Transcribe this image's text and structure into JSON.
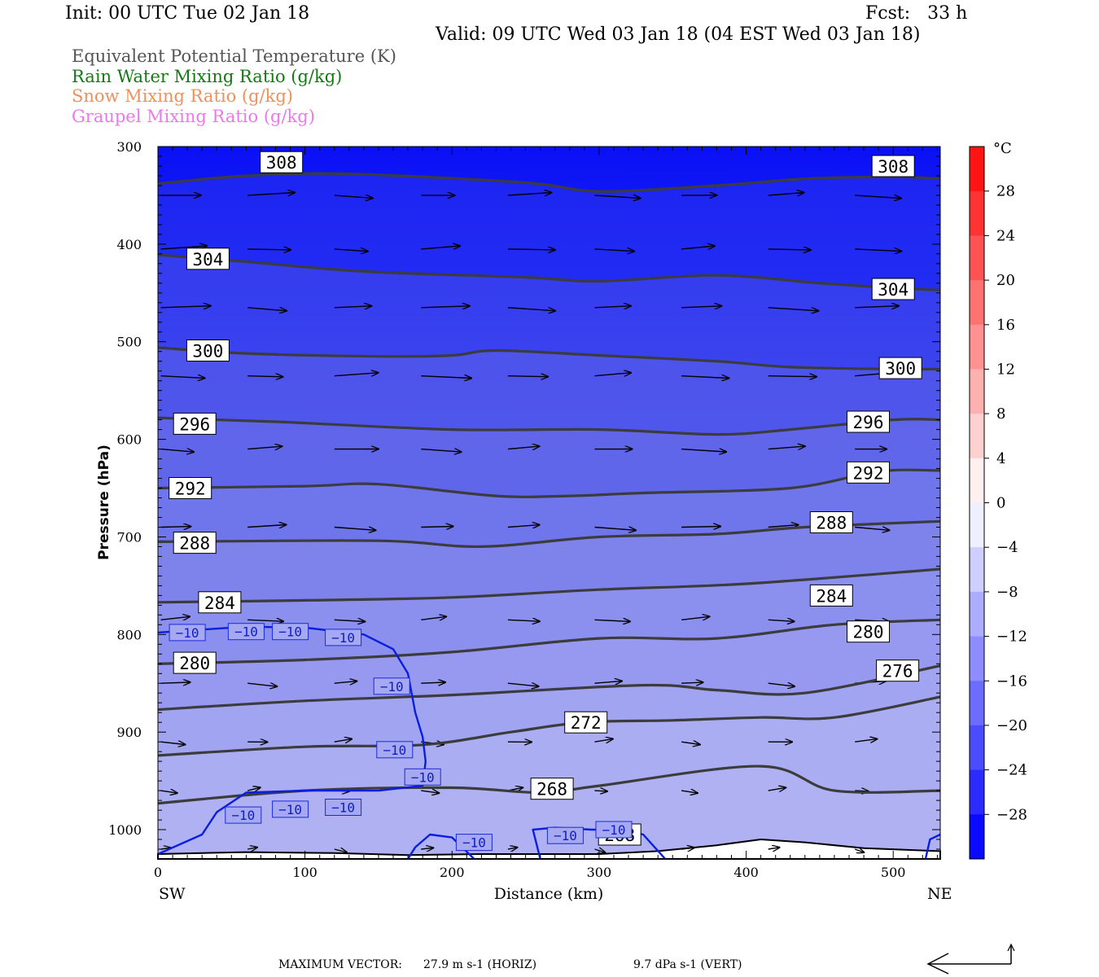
{
  "header": {
    "init": "Init: 00 UTC Tue 02 Jan 18",
    "fcst": "Fcst:   33 h",
    "valid": "Valid: 09 UTC Wed 03 Jan 18 (04 EST Wed 03 Jan 18)"
  },
  "legend": [
    {
      "label": "Equivalent Potential Temperature (K)",
      "color": "#555555"
    },
    {
      "label": "Rain Water Mixing Ratio (g/kg)",
      "color": "#137a13"
    },
    {
      "label": "Snow Mixing Ratio (g/kg)",
      "color": "#f0905a"
    },
    {
      "label": "Graupel Mixing Ratio (g/kg)",
      "color": "#ee77ee"
    }
  ],
  "chart_data": {
    "type": "heatmap",
    "subtype": "vertical cross-section",
    "xlabel": "Distance (km)",
    "ylabel": "Pressure (hPa)",
    "x_ticks": [
      0,
      100,
      200,
      300,
      400,
      500
    ],
    "xlim": [
      0,
      532
    ],
    "y_ticks": [
      300,
      400,
      500,
      600,
      700,
      800,
      900,
      1000
    ],
    "ylim": [
      300,
      1030
    ],
    "y_scale": "linear-pressure-inverted",
    "left_endpoint": "SW",
    "right_endpoint": "NE",
    "colorbar": {
      "unit": "°C",
      "labels": [
        28,
        24,
        20,
        16,
        12,
        8,
        4,
        0,
        -4,
        -8,
        -12,
        -16,
        -20,
        -24,
        -28
      ],
      "cold_color": "#0000ff",
      "warm_color": "#ff0000"
    },
    "theta_e_contours": [
      {
        "value": 308,
        "points": [
          [
            0,
            338
          ],
          [
            60,
            330
          ],
          [
            130,
            328
          ],
          [
            250,
            337
          ],
          [
            300,
            346
          ],
          [
            380,
            340
          ],
          [
            440,
            333
          ],
          [
            500,
            331
          ],
          [
            532,
            333
          ]
        ],
        "labels": [
          [
            84,
            316
          ],
          [
            500,
            320
          ]
        ]
      },
      {
        "value": 304,
        "points": [
          [
            0,
            411
          ],
          [
            60,
            418
          ],
          [
            140,
            428
          ],
          [
            250,
            434
          ],
          [
            300,
            438
          ],
          [
            380,
            432
          ],
          [
            450,
            440
          ],
          [
            500,
            445
          ],
          [
            532,
            447
          ]
        ],
        "labels": [
          [
            34,
            415
          ],
          [
            500,
            446
          ]
        ]
      },
      {
        "value": 300,
        "points": [
          [
            0,
            506
          ],
          [
            60,
            512
          ],
          [
            150,
            515
          ],
          [
            200,
            514
          ],
          [
            230,
            509
          ],
          [
            300,
            514
          ],
          [
            380,
            520
          ],
          [
            430,
            526
          ],
          [
            500,
            528
          ],
          [
            532,
            528
          ]
        ],
        "labels": [
          [
            34,
            509
          ],
          [
            505,
            527
          ]
        ]
      },
      {
        "value": 296,
        "points": [
          [
            0,
            578
          ],
          [
            80,
            582
          ],
          [
            200,
            590
          ],
          [
            300,
            590
          ],
          [
            380,
            595
          ],
          [
            430,
            590
          ],
          [
            500,
            580
          ],
          [
            532,
            580
          ]
        ],
        "labels": [
          [
            25,
            584
          ],
          [
            483,
            582
          ]
        ]
      },
      {
        "value": 292,
        "points": [
          [
            0,
            650
          ],
          [
            100,
            648
          ],
          [
            150,
            646
          ],
          [
            230,
            658
          ],
          [
            280,
            658
          ],
          [
            330,
            655
          ],
          [
            430,
            650
          ],
          [
            490,
            633
          ],
          [
            532,
            632
          ]
        ],
        "labels": [
          [
            22,
            650
          ],
          [
            483,
            634
          ]
        ]
      },
      {
        "value": 288,
        "points": [
          [
            0,
            705
          ],
          [
            150,
            704
          ],
          [
            220,
            710
          ],
          [
            300,
            700
          ],
          [
            380,
            697
          ],
          [
            440,
            690
          ],
          [
            532,
            684
          ]
        ],
        "labels": [
          [
            25,
            706
          ],
          [
            458,
            685
          ]
        ]
      },
      {
        "value": 284,
        "points": [
          [
            0,
            767
          ],
          [
            100,
            765
          ],
          [
            200,
            762
          ],
          [
            300,
            754
          ],
          [
            400,
            748
          ],
          [
            532,
            733
          ]
        ],
        "labels": [
          [
            42,
            767
          ],
          [
            458,
            760
          ]
        ]
      },
      {
        "value": 280,
        "points": [
          [
            0,
            830
          ],
          [
            100,
            826
          ],
          [
            200,
            818
          ],
          [
            300,
            804
          ],
          [
            380,
            804
          ],
          [
            460,
            790
          ],
          [
            532,
            785
          ]
        ],
        "labels": [
          [
            25,
            829
          ],
          [
            483,
            797
          ]
        ]
      },
      {
        "value": 276,
        "points": [
          [
            0,
            877
          ],
          [
            100,
            868
          ],
          [
            200,
            862
          ],
          [
            330,
            852
          ],
          [
            380,
            857
          ],
          [
            440,
            860
          ],
          [
            532,
            832
          ]
        ],
        "labels": [
          [
            503,
            837
          ]
        ]
      },
      {
        "value": 272,
        "points": [
          [
            0,
            924
          ],
          [
            100,
            915
          ],
          [
            180,
            913
          ],
          [
            240,
            900
          ],
          [
            290,
            890
          ],
          [
            350,
            888
          ],
          [
            410,
            885
          ],
          [
            460,
            885
          ],
          [
            532,
            864
          ]
        ],
        "labels": [
          [
            291,
            890
          ]
        ]
      },
      {
        "value": 268,
        "points": [
          [
            0,
            973
          ],
          [
            100,
            960
          ],
          [
            200,
            957
          ],
          [
            260,
            962
          ],
          [
            300,
            955
          ],
          [
            410,
            935
          ],
          [
            460,
            960
          ],
          [
            532,
            960
          ]
        ],
        "labels": [
          [
            268,
            958
          ],
          [
            314,
            1005
          ]
        ]
      }
    ],
    "temperature_contours": [
      {
        "value": -10,
        "points": [
          [
            0,
            798
          ],
          [
            60,
            792
          ],
          [
            100,
            793
          ],
          [
            140,
            800
          ],
          [
            160,
            815
          ],
          [
            170,
            840
          ],
          [
            175,
            880
          ],
          [
            180,
            905
          ],
          [
            182,
            930
          ],
          [
            180,
            955
          ],
          [
            150,
            960
          ],
          [
            100,
            960
          ],
          [
            60,
            962
          ],
          [
            40,
            982
          ],
          [
            30,
            1005
          ],
          [
            0,
            1025
          ]
        ],
        "labels": [
          [
            20,
            798
          ],
          [
            60,
            797
          ],
          [
            90,
            797
          ],
          [
            126,
            803
          ],
          [
            159,
            853
          ],
          [
            161,
            918
          ],
          [
            180,
            946
          ],
          [
            58,
            985
          ],
          [
            90,
            979
          ],
          [
            126,
            977
          ]
        ]
      },
      {
        "value": -10,
        "points": [
          [
            215,
            1030
          ],
          [
            200,
            1008
          ],
          [
            185,
            1005
          ],
          [
            175,
            1018
          ],
          [
            170,
            1030
          ]
        ],
        "labels": [
          [
            215,
            1013
          ]
        ]
      },
      {
        "value": -10,
        "points": [
          [
            260,
            1030
          ],
          [
            255,
            1000
          ],
          [
            270,
            998
          ],
          [
            295,
            1000
          ],
          [
            315,
            1000
          ],
          [
            330,
            1005
          ],
          [
            345,
            1030
          ]
        ],
        "labels": [
          [
            277,
            1006
          ],
          [
            310,
            1000
          ]
        ]
      },
      {
        "value": -10,
        "points": [
          [
            522,
            1030
          ],
          [
            525,
            1010
          ],
          [
            532,
            1005
          ]
        ],
        "labels": []
      }
    ],
    "wind_vectors_note": "Horizontal wind vectors in the cross-section plane",
    "max_vector_horiz": "27.9 m s-1 (HORIZ)",
    "max_vector_vert": "9.7 dPa s-1 (VERT)"
  },
  "axis_text": {
    "xlabel": "Distance (km)",
    "ylabel": "Pressure (hPa)",
    "left": "SW",
    "right": "NE",
    "colorbar_unit": "°C"
  },
  "footer": {
    "max_vector_label": "MAXIMUM VECTOR:",
    "horiz": "27.9 m s-1 (HORIZ)",
    "vert": "9.7 dPa s-1 (VERT)"
  }
}
